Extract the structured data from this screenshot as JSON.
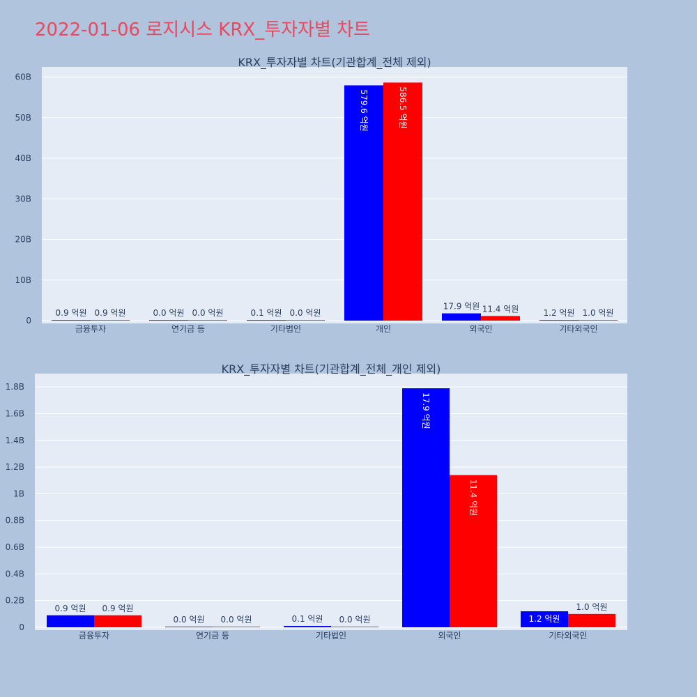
{
  "page": {
    "title": "2022-01-06 로지시스 KRX_투자자별 차트"
  },
  "colors": {
    "series_1": "#0000ff",
    "series_2": "#ff0000",
    "title": "#e8495f",
    "text": "#2a3f5f"
  },
  "chart_data": [
    {
      "type": "bar",
      "title": "KRX_투자자별 차트(기관합계_전체 제외)",
      "categories": [
        "금융투자",
        "연기금 등",
        "기타법인",
        "개인",
        "외국인",
        "기타외국인"
      ],
      "series": [
        {
          "values": [
            90000000,
            0,
            10000000,
            57960000000,
            1790000000,
            120000000
          ],
          "labels": [
            "0.9 억원",
            "0.0 억원",
            "0.1 억원",
            "579.6 억원",
            "17.9 억원",
            "1.2 억원"
          ]
        },
        {
          "values": [
            90000000,
            0,
            0,
            58650000000,
            1140000000,
            100000000
          ],
          "labels": [
            "0.9 억원",
            "0.0 억원",
            "0.0 억원",
            "586.5 억원",
            "11.4 억원",
            "1.0 억원"
          ]
        }
      ],
      "ylim": [
        0,
        62500000000
      ],
      "yticks": [
        0,
        10000000000,
        20000000000,
        30000000000,
        40000000000,
        50000000000,
        60000000000
      ],
      "yticklabels": [
        "0",
        "10B",
        "20B",
        "30B",
        "40B",
        "50B",
        "60B"
      ],
      "grid": true
    },
    {
      "type": "bar",
      "title": "KRX_투자자별 차트(기관합계_전체_개인 제외)",
      "categories": [
        "금융투자",
        "연기금 등",
        "기타법인",
        "외국인",
        "기타외국인"
      ],
      "series": [
        {
          "values": [
            90000000,
            0,
            10000000,
            1790000000,
            120000000
          ],
          "labels": [
            "0.9 억원",
            "0.0 억원",
            "0.1 억원",
            "17.9 억원",
            "1.2 억원"
          ]
        },
        {
          "values": [
            90000000,
            0,
            0,
            1140000000,
            100000000
          ],
          "labels": [
            "0.9 억원",
            "0.0 억원",
            "0.0 억원",
            "11.4 억원",
            "1.0 억원"
          ]
        }
      ],
      "ylim": [
        0,
        1900000000
      ],
      "yticks": [
        0,
        200000000,
        400000000,
        600000000,
        800000000,
        1000000000,
        1200000000,
        1400000000,
        1600000000,
        1800000000
      ],
      "yticklabels": [
        "0",
        "0.2B",
        "0.4B",
        "0.6B",
        "0.8B",
        "1B",
        "1.2B",
        "1.4B",
        "1.6B",
        "1.8B"
      ],
      "grid": true
    }
  ]
}
